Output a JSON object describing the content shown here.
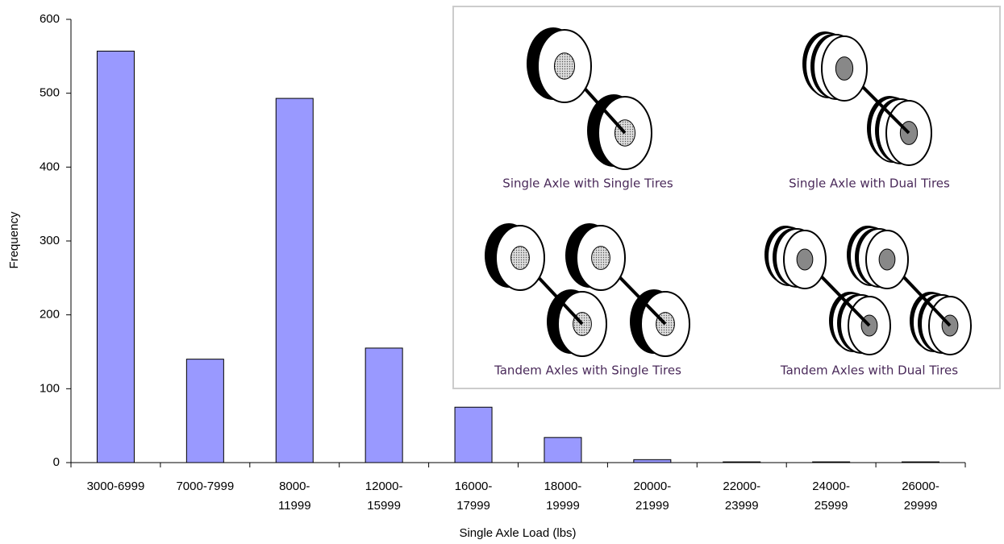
{
  "chart_data": {
    "type": "bar",
    "x_label": "Single Axle Load (lbs)",
    "y_label": "Frequency",
    "categories": [
      "3000-6999",
      "7000-7999",
      "8000-11999",
      "12000-15999",
      "16000-17999",
      "18000-19999",
      "20000-21999",
      "22000-23999",
      "24000-25999",
      "26000-29999"
    ],
    "values": [
      557,
      140,
      493,
      155,
      75,
      34,
      4,
      1,
      1,
      1
    ],
    "color": "#9999ff",
    "ylim": [
      0,
      600
    ],
    "yticks": [
      0,
      100,
      200,
      300,
      400,
      500,
      600
    ],
    "grid": false,
    "annotations": [
      "Single Axle with Single Tires",
      "Single Axle with Dual Tires",
      "Tandem Axles with Single Tires",
      "Tandem Axles with Dual Tires"
    ]
  }
}
